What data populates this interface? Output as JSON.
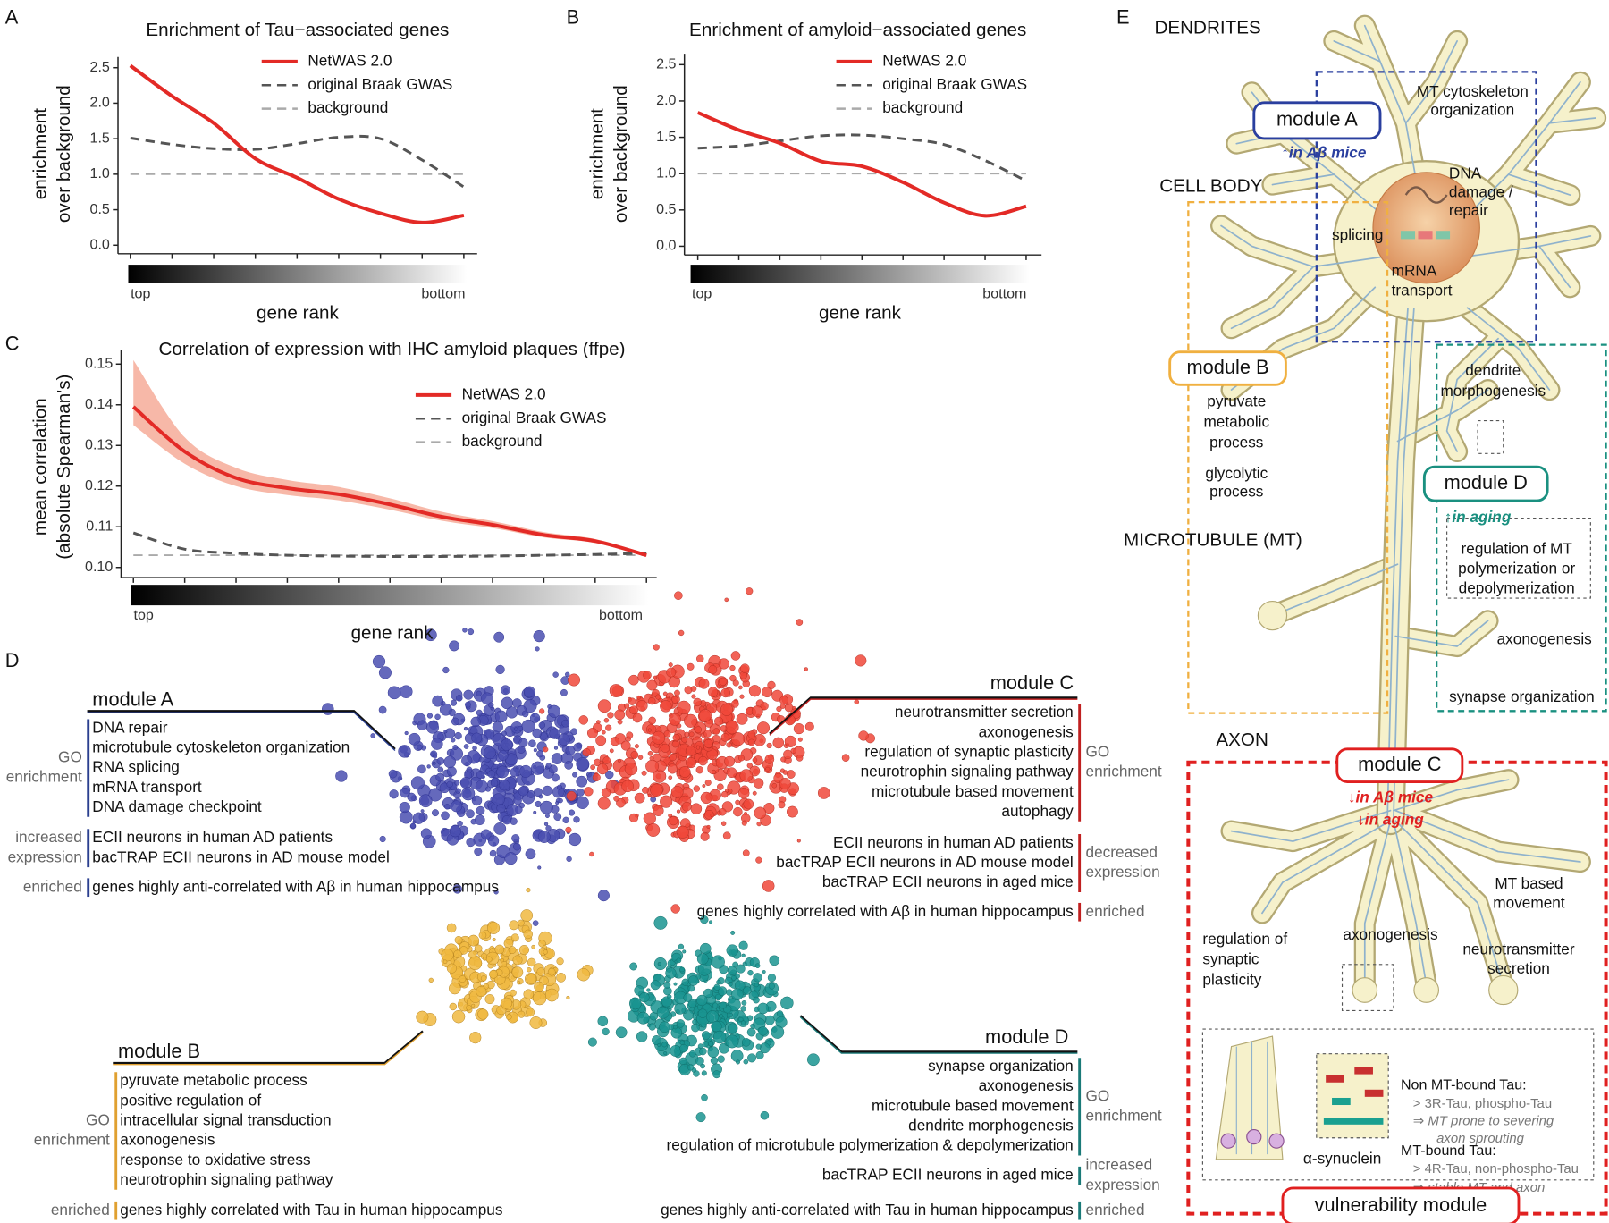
{
  "chart_data": [
    {
      "type": "line",
      "panel": "A",
      "title": "Enrichment of Tau−associated genes",
      "y_label": [
        "enrichment",
        "over background"
      ],
      "x_label": "gene rank",
      "categories": [
        "top",
        null,
        null,
        null,
        null,
        null,
        null,
        null,
        "bottom"
      ],
      "ylim": [
        -0.12,
        2.65
      ],
      "yticks": [
        {
          "value": 0,
          "label": "0.0"
        },
        0.5,
        {
          "value": 1,
          "label": "1.0"
        },
        1.5,
        {
          "value": 2,
          "label": "2.0"
        },
        2.5
      ],
      "series": [
        {
          "name": "NetWAS 2.0",
          "color": "#e32a26",
          "line_style": "solid",
          "values": [
            2.53,
            2.1,
            1.72,
            1.22,
            0.95,
            0.65,
            0.45,
            0.32,
            0.42
          ]
        },
        {
          "name": "original Braak GWAS",
          "color": "#555555",
          "line_style": "dashed",
          "values": [
            1.51,
            1.42,
            1.36,
            1.35,
            1.43,
            1.52,
            1.5,
            1.2,
            0.82
          ]
        },
        {
          "name": "background",
          "color": "#aaaaaa",
          "line_style": "dashed",
          "values": [
            1,
            1,
            1,
            1,
            1,
            1,
            1,
            1,
            1
          ]
        }
      ]
    },
    {
      "type": "line",
      "panel": "B",
      "title": "Enrichment of amyloid−associated genes",
      "y_label": [
        "enrichment",
        "over background"
      ],
      "x_label": "gene rank",
      "categories": [
        "top",
        null,
        null,
        null,
        null,
        null,
        null,
        null,
        "bottom"
      ],
      "ylim": [
        -0.12,
        2.65
      ],
      "yticks": [
        {
          "value": 0,
          "label": "0.0"
        },
        0.5,
        {
          "value": 1,
          "label": "1.0"
        },
        1.5,
        {
          "value": 2,
          "label": "2.0"
        },
        2.5
      ],
      "series": [
        {
          "name": "NetWAS 2.0",
          "color": "#e32a26",
          "line_style": "solid",
          "values": [
            1.84,
            1.6,
            1.42,
            1.17,
            1.1,
            0.88,
            0.6,
            0.42,
            0.55
          ]
        },
        {
          "name": "original Braak GWAS",
          "color": "#555555",
          "line_style": "dashed",
          "values": [
            1.35,
            1.38,
            1.45,
            1.52,
            1.53,
            1.48,
            1.4,
            1.18,
            0.9
          ]
        },
        {
          "name": "background",
          "color": "#aaaaaa",
          "line_style": "dashed",
          "values": [
            1,
            1,
            1,
            1,
            1,
            1,
            1,
            1,
            1
          ]
        }
      ]
    },
    {
      "type": "line",
      "panel": "C",
      "title": "Correlation of expression with IHC amyloid plaques (ffpe)",
      "y_label": [
        "mean correlation",
        "(absolute Spearman's)"
      ],
      "x_label": "gene rank",
      "categories": [
        "top",
        null,
        null,
        null,
        null,
        null,
        null,
        null,
        null,
        null,
        "bottom"
      ],
      "ylim": [
        0.0975,
        0.1535
      ],
      "yticks": [
        {
          "value": 0.1,
          "label": "0.10"
        },
        0.11,
        0.12,
        0.13,
        0.14,
        0.15
      ],
      "series": [
        {
          "name": "NetWAS 2.0",
          "color": "#e32a26",
          "line_style": "solid",
          "band_color": "#f7b8a8",
          "values": [
            0.1395,
            0.1285,
            0.122,
            0.1195,
            0.118,
            0.1155,
            0.1125,
            0.1105,
            0.108,
            0.1065,
            0.103
          ],
          "lower": [
            0.135,
            0.1255,
            0.12,
            0.1178,
            0.1165,
            0.1142,
            0.1115,
            0.1097,
            0.1074,
            0.106,
            0.1027
          ],
          "upper": [
            0.151,
            0.132,
            0.1245,
            0.1215,
            0.1198,
            0.117,
            0.1137,
            0.1114,
            0.1087,
            0.107,
            0.1034
          ]
        },
        {
          "name": "original Braak GWAS",
          "color": "#555555",
          "line_style": "dashed",
          "values": [
            0.1085,
            0.1045,
            0.1035,
            0.103,
            0.1028,
            0.1027,
            0.1027,
            0.1028,
            0.103,
            0.1032,
            0.1035
          ]
        },
        {
          "name": "background",
          "color": "#aaaaaa",
          "line_style": "dashed",
          "values": [
            0.103,
            0.103,
            0.103,
            0.103,
            0.103,
            0.103,
            0.103,
            0.103,
            0.103,
            0.103,
            0.103
          ]
        }
      ]
    }
  ],
  "network": {
    "panel": "D",
    "modules": [
      {
        "name": "module A",
        "color": "#2a3f8f",
        "groups": [
          {
            "label": [
              "GO",
              "enrichment"
            ],
            "items": [
              "DNA repair",
              "microtubule cytoskeleton organization",
              "RNA splicing",
              "mRNA transport",
              "DNA damage checkpoint"
            ]
          },
          {
            "label": [
              "increased",
              "expression"
            ],
            "items": [
              "ECII neurons in human AD patients",
              "bacTRAP ECII neurons in AD mouse model"
            ]
          },
          {
            "label": [
              "enriched"
            ],
            "items": [
              "genes highly anti-correlated with Aβ in human hippocampus"
            ]
          }
        ]
      },
      {
        "name": "module C",
        "color": "#c02020",
        "groups": [
          {
            "label": [
              "GO",
              "enrichment"
            ],
            "items": [
              "neurotransmitter secretion",
              "axonogenesis",
              "regulation of synaptic plasticity",
              "neurotrophin signaling pathway",
              "microtubule based movement",
              "autophagy"
            ]
          },
          {
            "label": [
              "decreased",
              "expression"
            ],
            "items": [
              "ECII neurons in human AD patients",
              "bacTRAP ECII neurons in AD mouse model",
              "bacTRAP ECII neurons in aged mice"
            ]
          },
          {
            "label": [
              "enriched"
            ],
            "items": [
              "genes highly correlated with Aβ in human hippocampus"
            ]
          }
        ]
      },
      {
        "name": "module B",
        "color": "#e0a030",
        "groups": [
          {
            "label": [
              "GO",
              "enrichment"
            ],
            "items": [
              "pyruvate metabolic process",
              "positive regulation of",
              "intracellular signal transduction",
              "axonogenesis",
              "response to oxidative stress",
              "neurotrophin signaling pathway"
            ]
          },
          {
            "label": [
              "enriched"
            ],
            "items": [
              "genes highly correlated with Tau in human hippocampus"
            ]
          }
        ]
      },
      {
        "name": "module D",
        "color": "#1a7a78",
        "groups": [
          {
            "label": [
              "GO",
              "enrichment"
            ],
            "items": [
              "synapse organization",
              "axonogenesis",
              "microtubule based movement",
              "dendrite morphogenesis",
              "regulation of microtubule polymerization & depolymerization"
            ]
          },
          {
            "label": [
              "increased",
              "expression"
            ],
            "items": [
              "bacTRAP ECII neurons in aged mice"
            ]
          },
          {
            "label": [
              "enriched"
            ],
            "items": [
              "genes highly anti-correlated with Tau in human hippocampus"
            ]
          }
        ]
      }
    ]
  },
  "neuron": {
    "panel": "E",
    "regions": [
      "DENDRITES",
      "CELL BODY",
      "MICROTUBULE (MT)",
      "AXON"
    ],
    "labels": [
      "MT cytoskeleton",
      "organization",
      "DNA",
      "damage /",
      "repair",
      "splicing",
      "mRNA",
      "transport",
      "pyruvate",
      "metabolic",
      "process",
      "glycolytic",
      "process",
      "dendrite",
      "morphogenesis",
      "regulation of MT",
      "polymerization or",
      "depolymerization",
      "axonogenesis",
      "synapse organization",
      "MT based",
      "movement",
      "regulation of",
      "synaptic",
      "plasticity",
      "axonogenesis",
      "neurotransmitter",
      "secretion",
      "α-synuclein"
    ],
    "tau": [
      "Non MT-bound Tau:",
      "> 3R-Tau, phospho-Tau",
      "⇒ MT prone to severing",
      "axon sprouting",
      "MT-bound Tau:",
      "> 4R-Tau, non-phospho-Tau",
      "⇒ stable MT and axon"
    ],
    "modules": [
      {
        "name": "module A",
        "color": "#2a3f9f",
        "notes": [
          "↑in Aβ mice"
        ]
      },
      {
        "name": "module B",
        "color": "#f0b040",
        "notes": []
      },
      {
        "name": "module D",
        "color": "#1a9080",
        "notes": [
          "↑in aging"
        ]
      },
      {
        "name": "module C",
        "color": "#e02020",
        "notes": [
          "↓in Aβ mice",
          "↓in aging"
        ]
      },
      {
        "name": "vulnerability module",
        "color": "#e02020",
        "notes": []
      }
    ]
  }
}
